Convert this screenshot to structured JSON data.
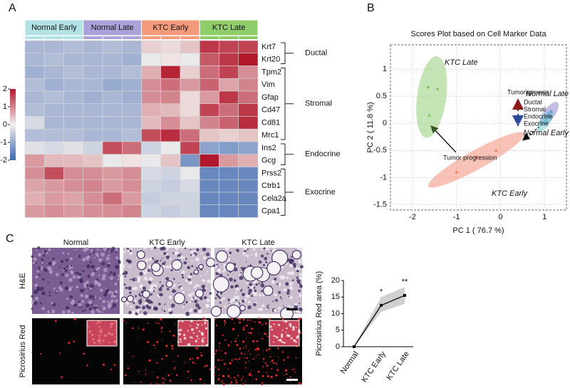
{
  "panels": [
    "A",
    "B",
    "C"
  ],
  "chart_data": [
    {
      "type": "heatmap",
      "groups": [
        {
          "name": "Normal Early",
          "color": "#b3e2e6"
        },
        {
          "name": "Normal Late",
          "color": "#aaa2d8"
        },
        {
          "name": "KTC Early",
          "color": "#f39a7c"
        },
        {
          "name": "KTC Late",
          "color": "#8fcc6a"
        }
      ],
      "row_groups": [
        {
          "label": "Ductal",
          "genes": [
            "Krt7",
            "Krt20"
          ]
        },
        {
          "label": "Stromal",
          "genes": [
            "Tpm2",
            "Vim",
            "Gfap",
            "Cd47",
            "Cd81",
            "Mrc1"
          ]
        },
        {
          "label": "Endocrine",
          "genes": [
            "Ins2",
            "Gcg"
          ]
        },
        {
          "label": "Exocrine",
          "genes": [
            "Prss2",
            "Ctrb1",
            "Cela2a",
            "Cpa1"
          ]
        }
      ],
      "values": [
        [
          -0.8,
          -0.8,
          -0.7,
          -0.8,
          -0.7,
          -0.8,
          0.3,
          0.2,
          0.4,
          1.7,
          1.6,
          1.6
        ],
        [
          -0.8,
          -0.7,
          -0.8,
          -0.8,
          -0.8,
          -0.9,
          -0.1,
          0.1,
          -0.1,
          1.4,
          1.7,
          2.0
        ],
        [
          -0.9,
          -0.8,
          -0.7,
          -0.8,
          -0.8,
          -0.7,
          0.6,
          1.9,
          0.3,
          1.2,
          1.6,
          0.9
        ],
        [
          -0.7,
          -0.9,
          -0.8,
          -0.8,
          -1.0,
          -0.9,
          0.9,
          1.2,
          0.8,
          1.3,
          0.7,
          1.0
        ],
        [
          -0.8,
          -0.7,
          -0.8,
          -0.9,
          -0.8,
          -0.9,
          0.9,
          1.0,
          0.2,
          0.8,
          1.7,
          1.2
        ],
        [
          -0.7,
          -0.8,
          -0.8,
          -0.8,
          -0.8,
          -0.8,
          0.6,
          0.5,
          0.2,
          1.6,
          1.2,
          1.7
        ],
        [
          -0.3,
          -0.8,
          -0.8,
          -0.8,
          -0.8,
          -0.8,
          0.5,
          0.9,
          0.4,
          1.0,
          1.3,
          1.8
        ],
        [
          -0.7,
          -0.7,
          -0.7,
          -0.8,
          -0.8,
          -0.7,
          1.5,
          1.8,
          1.2,
          0.4,
          0.3,
          0.4
        ],
        [
          -0.2,
          -0.3,
          -0.2,
          -0.4,
          1.5,
          1.2,
          -0.4,
          -0.1,
          1.6,
          -1.1,
          -1.2,
          -1.1
        ],
        [
          0.8,
          0.5,
          0.5,
          0.4,
          -0.1,
          0.1,
          -0.1,
          0.4,
          -1.3,
          2.0,
          0.8,
          0.6
        ],
        [
          0.9,
          1.5,
          0.9,
          0.9,
          0.8,
          0.9,
          -0.3,
          -0.4,
          -0.1,
          -1.5,
          -1.5,
          -1.5
        ],
        [
          0.7,
          0.8,
          0.9,
          1.0,
          0.8,
          0.9,
          -0.4,
          -0.5,
          -0.3,
          -1.5,
          -1.5,
          -1.5
        ],
        [
          0.6,
          0.8,
          0.7,
          0.9,
          1.2,
          0.8,
          -0.5,
          -0.4,
          -0.4,
          -1.5,
          -1.5,
          -1.5
        ],
        [
          0.8,
          0.9,
          0.8,
          0.9,
          0.9,
          1.0,
          -0.4,
          -0.5,
          -0.4,
          -1.5,
          -1.5,
          -1.5
        ]
      ],
      "colorbar": {
        "lim": [
          -2,
          2
        ],
        "ticks": [
          2,
          1,
          0,
          -1,
          -2
        ],
        "colors": [
          "#3b64b0",
          "#f2efed",
          "#b2182b"
        ]
      }
    },
    {
      "type": "scatter",
      "title": "Scores Plot based on Cell Marker Data",
      "x_label": "PC 1 ( 76.7 %)",
      "y_label": "PC 2 ( 11.8 %)",
      "xlim": [
        -2.5,
        1.5
      ],
      "ylim": [
        -1.6,
        1.45
      ],
      "xticks": [
        -2,
        -1,
        0,
        1
      ],
      "yticks": [
        1,
        0.5,
        0,
        -0.5,
        -1,
        -1.5
      ],
      "grid": true,
      "series": [
        {
          "name": "KTC Late",
          "color": "#7dc45a",
          "x": [
            -1.64,
            -1.43,
            -1.62
          ],
          "y": [
            0.67,
            0.64,
            0.15
          ]
        },
        {
          "name": "KTC Early",
          "color": "#f07a5e",
          "x": [
            -1.0,
            -0.55,
            -0.1
          ],
          "y": [
            -0.9,
            -0.62,
            -0.5
          ]
        },
        {
          "name": "Normal Late",
          "color": "#7a6cc8",
          "x": [
            1.1,
            1.15,
            1.08
          ],
          "y": [
            0.18,
            0.22,
            0.14
          ]
        },
        {
          "name": "Normal Early",
          "color": "#5fc3d0",
          "x": [
            1.02,
            1.05,
            1.0
          ],
          "y": [
            0.05,
            0.08,
            0.02
          ]
        }
      ],
      "annotations": {
        "arrow_label": "Tumor progression",
        "legend_title": "Tumorigenesis",
        "legend_items": [
          "Ductal",
          "Stromal",
          "Endocrine",
          "Exocrine"
        ]
      }
    },
    {
      "type": "line",
      "y_label": "Picrosirius Red area (%)",
      "categories": [
        "Normal",
        "KTC Early",
        "KTC Late"
      ],
      "values": [
        0,
        12.5,
        15.5
      ],
      "lower": [
        0,
        10.5,
        13
      ],
      "upper": [
        0.3,
        15,
        18
      ],
      "significance": [
        null,
        "*",
        "**"
      ],
      "ylim": [
        0,
        20
      ],
      "yticks": [
        0,
        5,
        10,
        15,
        20
      ],
      "color": "#000000",
      "band_color": "#d0d0d0"
    }
  ],
  "images": {
    "columns": [
      "Normal",
      "KTC Early",
      "KTC Late"
    ],
    "rows": [
      "H&E",
      "Picrosirius Red"
    ]
  }
}
